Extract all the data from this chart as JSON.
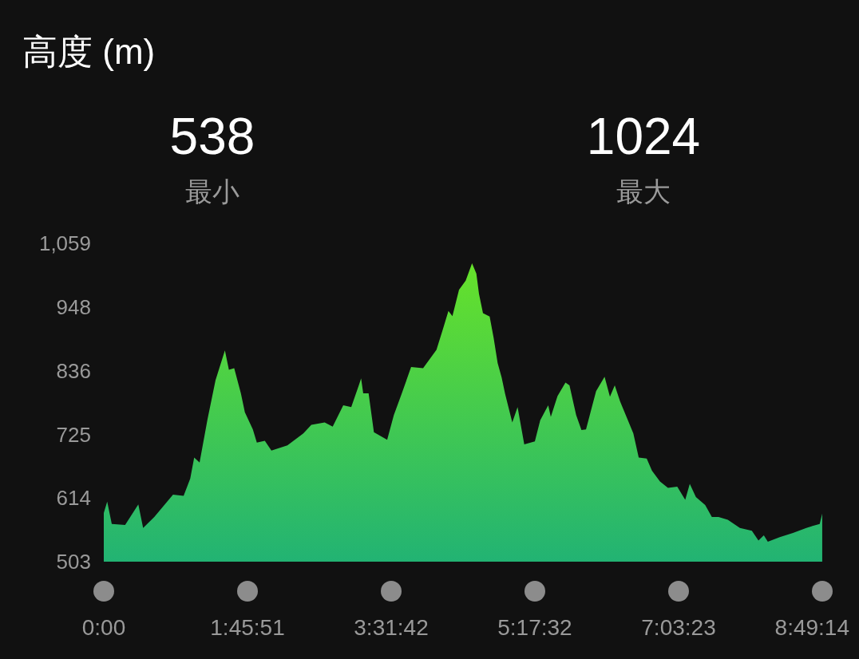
{
  "chart_data": {
    "type": "area",
    "title": "高度 (m)",
    "annotations": [
      "538",
      "最小",
      "1024",
      "最大"
    ],
    "xlim": [
      0,
      8.82056
    ],
    "ylim": [
      503,
      1059
    ],
    "xticks": [
      {
        "value": 0,
        "label": "0:00"
      },
      {
        "value": 1.76417,
        "label": "1:45:51"
      },
      {
        "value": 3.52833,
        "label": "3:31:42"
      },
      {
        "value": 5.29222,
        "label": "5:17:32"
      },
      {
        "value": 7.05639,
        "label": "7:03:23"
      },
      {
        "value": 8.82056,
        "label": "8:49:14"
      }
    ],
    "yticks": [
      503,
      614,
      725,
      836,
      948,
      {
        "value": 1059,
        "label": "1,059"
      }
    ],
    "grid": false,
    "series": [
      {
        "color": "#22b373",
        "x": [
          0,
          0.042,
          0.098,
          0.262,
          0.424,
          0.483,
          0.62,
          0.85,
          0.98,
          1.061,
          1.11,
          1.176,
          1.274,
          1.372,
          1.487,
          1.536,
          1.601,
          1.683,
          1.732,
          1.83,
          1.879,
          1.977,
          2.058,
          2.254,
          2.45,
          2.548,
          2.712,
          2.81,
          2.94,
          3.038,
          3.136,
          3.159,
          3.185,
          3.251,
          3.316,
          3.479,
          3.561,
          3.659,
          3.773,
          3.92,
          4.084,
          4.165,
          4.231,
          4.28,
          4.361,
          4.443,
          4.521,
          4.574,
          4.606,
          4.655,
          4.737,
          4.786,
          4.835,
          4.884,
          4.927,
          5.015,
          5.08,
          5.162,
          5.292,
          5.358,
          5.456,
          5.488,
          5.57,
          5.668,
          5.717,
          5.799,
          5.864,
          5.92,
          6.044,
          6.148,
          6.214,
          6.273,
          6.338,
          6.42,
          6.501,
          6.567,
          6.665,
          6.73,
          6.828,
          6.926,
          7.04,
          7.138,
          7.194,
          7.269,
          7.383,
          7.465,
          7.547,
          7.661,
          7.809,
          7.956,
          8.037,
          8.103,
          8.152,
          8.299,
          8.461,
          8.625,
          8.789,
          8.82
        ],
        "values": [
          588,
          608,
          569,
          567,
          603,
          562,
          581,
          620,
          618,
          648,
          685,
          676,
          752,
          820,
          872,
          838,
          841,
          797,
          764,
          734,
          711,
          714,
          697,
          706,
          727,
          742,
          746,
          739,
          776,
          773,
          813,
          823,
          797,
          797,
          729,
          716,
          759,
          797,
          843,
          841,
          873,
          910,
          941,
          932,
          978,
          994,
          1024,
          1006,
          971,
          937,
          931,
          894,
          850,
          825,
          796,
          746,
          773,
          708,
          713,
          750,
          776,
          756,
          792,
          816,
          811,
          759,
          733,
          734,
          801,
          826,
          791,
          811,
          783,
          755,
          727,
          685,
          683,
          662,
          643,
          632,
          634,
          611,
          639,
          616,
          602,
          581,
          581,
          576,
          562,
          557,
          540,
          549,
          538,
          546,
          553,
          562,
          569,
          587
        ]
      }
    ]
  }
}
